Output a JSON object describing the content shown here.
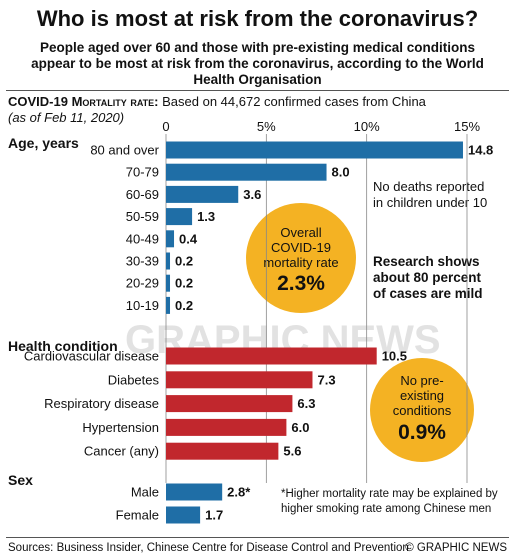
{
  "header": {
    "title": "Who is most at risk from the coronavirus?",
    "subtitle": "People aged over 60 and those with pre-existing medical conditions appear to be most at risk from the coronavirus, according to the World Health Organisation"
  },
  "rate_label": "COVID-19 Mortality rate:",
  "rate_text": "Based on 44,672 confirmed cases from China",
  "as_of": "(as of Feb 11, 2020)",
  "colors": {
    "age_bar": "#1f6ea6",
    "condition_bar": "#c1272d",
    "bubble": "#f4b223"
  },
  "notes": {
    "children": "No deaths reported in children under 10",
    "research": "Research shows about 80 percent of cases are mild",
    "overall_label": "Overall COVID-19 mortality rate",
    "overall_value": "2.3%",
    "no_conditions_label": "No pre-existing conditions",
    "no_conditions_value": "0.9%",
    "smoking": "*Higher mortality rate may be explained by higher smoking rate among Chinese men"
  },
  "footer": {
    "sources": "Sources: Business Insider, Chinese Centre for Disease Control and Prevention",
    "credit": "© GRAPHIC NEWS"
  },
  "watermark": "GRAPHIC NEWS",
  "chart_data": {
    "type": "bar",
    "orientation": "horizontal",
    "xlim": [
      0,
      15
    ],
    "xticks": [
      {
        "value": 0,
        "label": "0"
      },
      {
        "value": 5,
        "label": "5%"
      },
      {
        "value": 10,
        "label": "10%"
      },
      {
        "value": 15,
        "label": "15%"
      }
    ],
    "groups": [
      {
        "name": "Age, years",
        "color": "#1f6ea6",
        "categories": [
          "80 and over",
          "70-79",
          "60-69",
          "50-59",
          "40-49",
          "30-39",
          "20-29",
          "10-19"
        ],
        "values": [
          14.8,
          8.0,
          3.6,
          1.3,
          0.4,
          0.2,
          0.2,
          0.2
        ],
        "labels": [
          "14.8",
          "8.0",
          "3.6",
          "1.3",
          "0.4",
          "0.2",
          "0.2",
          "0.2"
        ]
      },
      {
        "name": "Health condition",
        "color": "#c1272d",
        "categories": [
          "Cardiovascular disease",
          "Diabetes",
          "Respiratory disease",
          "Hypertension",
          "Cancer (any)"
        ],
        "values": [
          10.5,
          7.3,
          6.3,
          6.0,
          5.6
        ],
        "labels": [
          "10.5",
          "7.3",
          "6.3",
          "6.0",
          "5.6"
        ]
      },
      {
        "name": "Sex",
        "color": "#1f6ea6",
        "categories": [
          "Male",
          "Female"
        ],
        "values": [
          2.8,
          1.7
        ],
        "labels": [
          "2.8*",
          "1.7"
        ]
      }
    ]
  }
}
